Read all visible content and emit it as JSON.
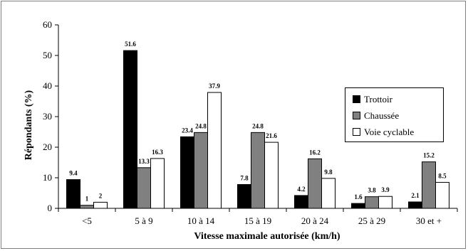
{
  "chart_data": {
    "type": "bar",
    "title": "",
    "xlabel": "Vitesse maximale autorisée (km/h)",
    "ylabel": "Répondants (%)",
    "ylim": [
      0,
      60
    ],
    "yticks": [
      "0",
      "10",
      "20",
      "30",
      "40",
      "50",
      "60"
    ],
    "categories": [
      "<5",
      "5 à 9",
      "10 à 14",
      "15 à 19",
      "20 à 24",
      "25 à 29",
      "30 et +"
    ],
    "series": [
      {
        "name": "Trottoir",
        "color": "#000000",
        "values": [
          9.4,
          51.6,
          23.4,
          7.8,
          4.2,
          1.6,
          2.1
        ],
        "labels": [
          "9.4",
          "51.6",
          "23.4",
          "7.8",
          "4.2",
          "1.6",
          "2.1"
        ]
      },
      {
        "name": "Chaussée",
        "color": "#808080",
        "values": [
          1,
          13.3,
          24.8,
          24.8,
          16.2,
          3.8,
          15.2
        ],
        "labels": [
          "1",
          "13.3",
          "24.8",
          "24.8",
          "16.2",
          "3.8",
          "15.2"
        ]
      },
      {
        "name": "Voie cyclable",
        "color": "#ffffff",
        "values": [
          2,
          16.3,
          37.9,
          21.6,
          9.8,
          3.9,
          8.5
        ],
        "labels": [
          "2",
          "16.3",
          "37.9",
          "21.6",
          "9.8",
          "3.9",
          "8.5"
        ]
      }
    ],
    "grid": false,
    "legend_position": "right"
  }
}
